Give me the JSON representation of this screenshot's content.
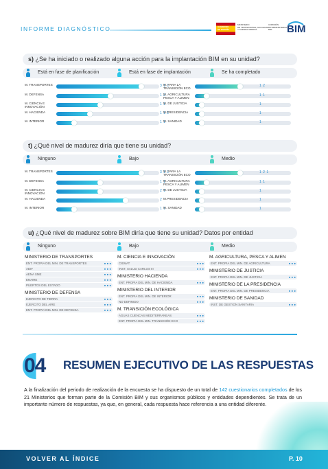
{
  "header": {
    "title": "INFORME DIAGNÓSTICO",
    "logo_gov_lines": [
      "GOBIERNO",
      "DE ESPAÑA"
    ],
    "logo_ministry_lines": [
      "MINISTERIO",
      "DE TRANSPORTES, MOVILIDAD",
      "Y AGENDA URBANA"
    ],
    "logo_commission_lines": [
      "COMISIÓN",
      "INTERMINISTERIAL",
      "BIM"
    ],
    "logo_bim": "BIM"
  },
  "section_s": {
    "letter": "s)",
    "question": "¿Se ha iniciado o realizado alguna acción para la implantación BIM en su unidad?",
    "legend": [
      "Está en fase de planificación",
      "Está en fase de implantación",
      "Se ha completado"
    ],
    "left_rows": [
      {
        "entity": "M. TRANSPORTES",
        "level": 0.85,
        "count": "3 1 1"
      },
      {
        "entity": "M. DEFENSA",
        "level": 0.55,
        "count": "1 2"
      },
      {
        "entity": "M. CIENCIA E INNOVACIÓN",
        "level": 0.45,
        "count": "1 1"
      },
      {
        "entity": "M. HACIENDA",
        "level": 0.35,
        "count": "1 1 1"
      },
      {
        "entity": "M. INTERIOR",
        "level": 0.2,
        "count": "1 1"
      }
    ],
    "right_rows": [
      {
        "entity": "M. PARA LA TRANSICIÓN ECO",
        "level": 0.5,
        "count": "1 2"
      },
      {
        "entity": "M. AGRICULTURA PESCA Y ALIMEN",
        "level": 0.15,
        "count": "1 1"
      },
      {
        "entity": "M. DE JUSTICIA",
        "level": 0.1,
        "count": "1"
      },
      {
        "entity": "M.PRESIDENCIA",
        "level": 0.1,
        "count": "1"
      },
      {
        "entity": "M. SANIDAD",
        "level": 0.1,
        "count": "1"
      }
    ]
  },
  "section_t": {
    "letter": "t)",
    "question": "¿Qué nivel de madurez diría que tiene su unidad?",
    "legend": [
      "Ninguno",
      "Bajo",
      "Medio"
    ],
    "left_rows": [
      {
        "entity": "M. TRANSPORTES",
        "level": 0.85,
        "count": "3 1 1"
      },
      {
        "entity": "M. DEFENSA",
        "level": 0.45,
        "count": "1 1"
      },
      {
        "entity": "M. CIENCIA E INNOVACIÓN",
        "level": 0.45,
        "count": "2 1"
      },
      {
        "entity": "M. HACIENDA",
        "level": 0.7,
        "count": "2"
      },
      {
        "entity": "M. INTERIOR",
        "level": 0.2,
        "count": "1 1"
      }
    ],
    "right_rows": [
      {
        "entity": "M. PARA LA TRANSICIÓN ECO",
        "level": 0.5,
        "count": "1 2 1"
      },
      {
        "entity": "M. AGRICULTURA PESCA Y ALIMEN",
        "level": 0.15,
        "count": "1 1"
      },
      {
        "entity": "M. DE JUSTICIA",
        "level": 0.1,
        "count": "1"
      },
      {
        "entity": "M.PRESIDENCIA",
        "level": 0.1,
        "count": "1"
      },
      {
        "entity": "M. SANIDAD",
        "level": 0.1,
        "count": "1"
      }
    ]
  },
  "section_u": {
    "letter": "u)",
    "question": "¿Qué nivel de madurez sobre BIM diría que tiene su unidad? Datos por entidad",
    "legend": [
      "Ninguno",
      "Bajo",
      "Medio"
    ],
    "col1": [
      {
        "ministry": "MINISTERIO DE TRANSPORTES",
        "subs": [
          "ENT. PROPIA DEL MIN. DE TRANSPORTES",
          "ADIF",
          "AENA SME",
          "ENAIRE",
          "PUERTOS DEL ESTADO"
        ]
      },
      {
        "ministry": "MINISTERIO DE DEFENSA",
        "subs": [
          "EJERCITO DE TIERRA",
          "EJERCITO DEL AIRE",
          "ENT. PROPIA DEL MIN. DE DEFENSA"
        ]
      }
    ],
    "col2": [
      {
        "ministry": "M. CIENCIA E INNOVACIÓN",
        "subs": [
          "CIEMAT",
          "INST. SALUD CARLOS III"
        ]
      },
      {
        "ministry": "MINISTERIO HACIENDA",
        "subs": [
          "ENT. PROPIA DEL MIN. DE HACIENDA"
        ]
      },
      {
        "ministry": "MINISTERIO DEL INTERIOR",
        "subs": [
          "ENT. PROPIA DEL MIN. DE INTERIOR",
          "NO DEFINIDO"
        ]
      },
      {
        "ministry": "M. TRANSICIÓN ECOLÓGICA",
        "subs": [
          "AGUAS CUENCAS MEDITERRANEAS",
          "ENT. PROPIA DEL MIN. TRANSICIÓN ECO"
        ]
      }
    ],
    "col3": [
      {
        "ministry": "M. AGRICULTURA, PESCA Y ALIMEN",
        "subs": [
          "ENT. PROPIA DEL MIN. DE AGRICULTURA"
        ]
      },
      {
        "ministry": "MINISTERIO DE JUSTICIA",
        "subs": [
          "ENT. PROPIA DEL MIN. DE JUSTICIA"
        ]
      },
      {
        "ministry": "MINISTERIO DE LA PRESIDENCIA",
        "subs": [
          "ENT. PROPIA DEL MIN. DE PRESIDENCIA"
        ]
      },
      {
        "ministry": "MINISTERIO DE SANIDAD",
        "subs": [
          "INST. DE GESTION SANITARIA"
        ]
      }
    ]
  },
  "summary": {
    "number": "04",
    "title": "RESUMEN EJECUTIVO DE LAS RESPUESTAS",
    "text_before": "A la finalización del periodo de realización de la encuesta se ha dispuesto de un total de ",
    "highlight": "142 cuestionarios completados",
    "text_after": " de los 21 Ministerios que forman parte de la Comisión BIM y sus organismos públicos y entidades dependientes. Se trata de un importante número de respuestas, ya que, en general, cada respuesta hace referencia a una entidad diferente."
  },
  "footer": {
    "back_label": "VOLVER AL ÍNDICE",
    "page": "P. 10"
  }
}
